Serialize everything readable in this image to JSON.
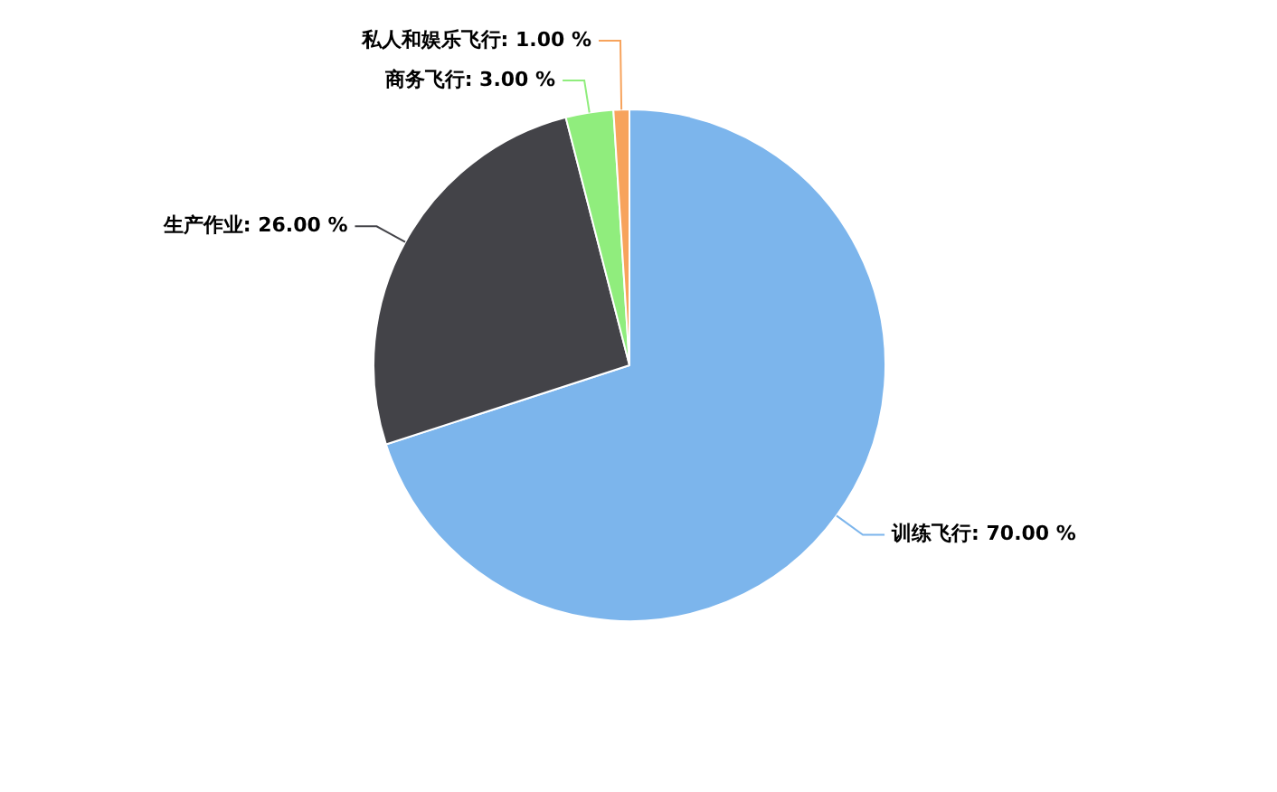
{
  "chart_data": {
    "type": "pie",
    "categories": [
      "训练飞行",
      "生产作业",
      "商务飞行",
      "私人和娱乐飞行"
    ],
    "values": [
      70,
      26,
      3,
      1
    ],
    "colors": [
      "#7cb5ec",
      "#434348",
      "#90ed7d",
      "#f7a35c"
    ],
    "value_labels": [
      "70.00 %",
      "26.00 %",
      "3.00 %",
      "1.00 %"
    ]
  }
}
